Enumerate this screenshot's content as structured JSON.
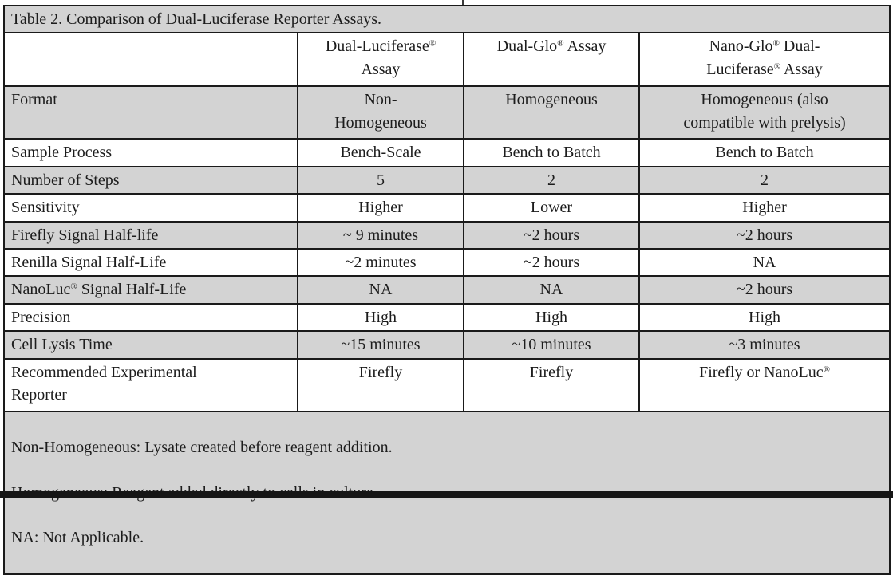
{
  "table": {
    "title": "Table 2. Comparison of Dual-Luciferase Reporter Assays.",
    "columns": [
      "",
      "Dual-Luciferase®\nAssay",
      "Dual-Glo® Assay",
      "Nano-Glo® Dual-\nLuciferase® Assay"
    ],
    "rows": [
      {
        "label": "Format",
        "values": [
          "Non-\nHomogeneous",
          "Homogeneous",
          "Homogeneous (also\ncompatible with prelysis)"
        ]
      },
      {
        "label": "Sample Process",
        "values": [
          "Bench-Scale",
          "Bench to Batch",
          "Bench to Batch"
        ]
      },
      {
        "label": "Number of Steps",
        "values": [
          "5",
          "2",
          "2"
        ]
      },
      {
        "label": "Sensitivity",
        "values": [
          "Higher",
          "Lower",
          "Higher"
        ]
      },
      {
        "label": "Firefly Signal Half-life",
        "values": [
          "~ 9 minutes",
          "~2 hours",
          "~2 hours"
        ]
      },
      {
        "label": "Renilla Signal Half-Life",
        "values": [
          "~2 minutes",
          "~2 hours",
          "NA"
        ]
      },
      {
        "label": "NanoLuc® Signal Half-Life",
        "values": [
          "NA",
          "NA",
          "~2 hours"
        ]
      },
      {
        "label": "Precision",
        "values": [
          "High",
          "High",
          "High"
        ]
      },
      {
        "label": "Cell Lysis Time",
        "values": [
          "~15 minutes",
          "~10 minutes",
          "~3 minutes"
        ]
      },
      {
        "label": "Recommended Experimental\nReporter",
        "values": [
          "Firefly",
          "Firefly",
          "Firefly or NanoLuc®"
        ]
      }
    ],
    "footnotes": [
      "Non-Homogeneous: Lysate created before reagent addition.",
      "Homogeneous: Reagent added directly to cells in culture.",
      "NA: Not Applicable."
    ],
    "colors": {
      "row_shade": "#d3d3d3",
      "border": "#1a1a1a",
      "text": "#1c1c1c",
      "background": "#ffffff"
    }
  }
}
